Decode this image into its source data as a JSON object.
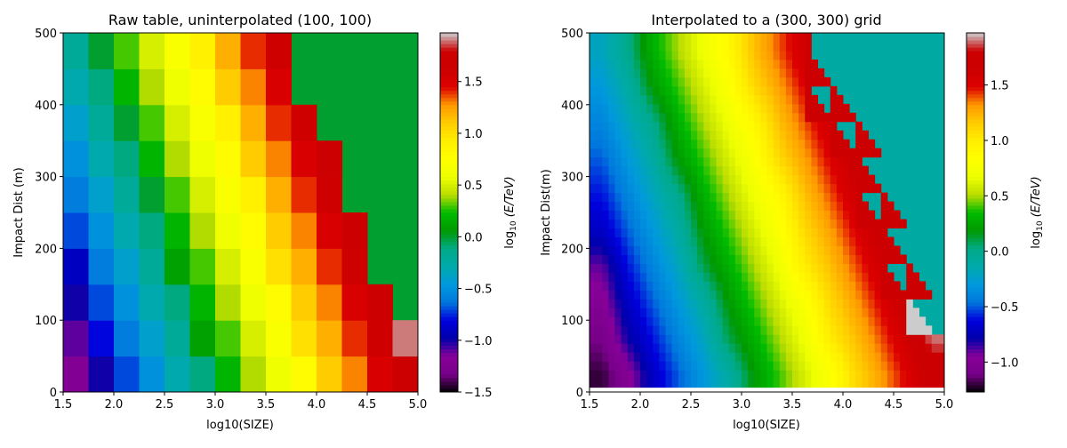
{
  "chart_data": [
    {
      "type": "heatmap",
      "title": "Raw table, uninterpolated (100, 100)",
      "xlabel": "log10(SIZE)",
      "ylabel": "Impact Dist (m)",
      "xlim": [
        1.5,
        5.0
      ],
      "ylim": [
        0,
        500
      ],
      "xticks": [
        "1.5",
        "2.0",
        "2.5",
        "3.0",
        "3.5",
        "4.0",
        "4.5",
        "5.0"
      ],
      "yticks": [
        "0",
        "100",
        "200",
        "300",
        "400",
        "500"
      ],
      "colormap": "nipy_spectral",
      "interpolation": "none",
      "colorbar": {
        "label_main": "log",
        "label_sub": "10",
        "label_rest": " (E/TeV)",
        "range": [
          -1.5,
          1.97
        ],
        "ticks": [
          "−1.5",
          "−1.0",
          "−0.5",
          "0.0",
          "0.5",
          "1.0",
          "1.5"
        ]
      },
      "fill_value": 0.0
    },
    {
      "type": "heatmap",
      "title": "Interpolated to a (300, 300) grid",
      "xlabel": "log10(SIZE)",
      "ylabel": "Impact Dist(m)",
      "xlim": [
        1.5,
        5.0
      ],
      "ylim": [
        0,
        500
      ],
      "xticks": [
        "1.5",
        "2.0",
        "2.5",
        "3.0",
        "3.5",
        "4.0",
        "4.5",
        "5.0"
      ],
      "yticks": [
        "0",
        "100",
        "200",
        "300",
        "400",
        "500"
      ],
      "colormap": "nipy_spectral",
      "interpolation": "bilinear",
      "colorbar": {
        "label_main": "log",
        "label_sub": "10",
        "label_rest": " (E/TeV)",
        "range": [
          -1.27,
          1.97
        ],
        "ticks": [
          "−1.0",
          "−0.5",
          "0.0",
          "0.5",
          "1.0",
          "1.5"
        ]
      },
      "fill_value": -0.1
    }
  ],
  "grid": {
    "x_centers": [
      1.625,
      1.875,
      2.125,
      2.375,
      2.625,
      2.875,
      3.125,
      3.375,
      3.625,
      3.875,
      4.125,
      4.375,
      4.625,
      4.875
    ],
    "y_centers": [
      25,
      75,
      125,
      175,
      225,
      275,
      325,
      375,
      425,
      475
    ],
    "values": [
      [
        -1.2,
        -1.0,
        -0.7,
        -0.5,
        -0.3,
        -0.1,
        0.2,
        0.4,
        0.6,
        0.8,
        1.1,
        1.3,
        1.5,
        1.7
      ],
      [
        -1.1,
        -0.8,
        -0.6,
        -0.4,
        -0.2,
        0.1,
        0.3,
        0.5,
        0.7,
        1.0,
        1.2,
        1.4,
        1.6,
        1.9
      ],
      [
        -1.0,
        -0.7,
        -0.5,
        -0.3,
        -0.1,
        0.2,
        0.4,
        0.6,
        0.8,
        1.1,
        1.3,
        1.5,
        1.7,
        null
      ],
      [
        -0.9,
        -0.6,
        -0.4,
        -0.2,
        0.1,
        0.3,
        0.5,
        0.7,
        1.0,
        1.2,
        1.4,
        1.6,
        null,
        null
      ],
      [
        -0.7,
        -0.5,
        -0.3,
        -0.1,
        0.2,
        0.4,
        0.6,
        0.8,
        1.1,
        1.3,
        1.5,
        1.7,
        null,
        null
      ],
      [
        -0.6,
        -0.4,
        -0.2,
        0.0,
        0.3,
        0.5,
        0.7,
        0.9,
        1.2,
        1.4,
        1.6,
        null,
        null,
        null
      ],
      [
        -0.5,
        -0.3,
        -0.1,
        0.2,
        0.4,
        0.6,
        0.8,
        1.1,
        1.3,
        1.5,
        1.7,
        null,
        null,
        null
      ],
      [
        -0.4,
        -0.2,
        0.0,
        0.3,
        0.5,
        0.7,
        0.9,
        1.2,
        1.4,
        1.6,
        null,
        null,
        null,
        null
      ],
      [
        -0.3,
        -0.1,
        0.2,
        0.4,
        0.6,
        0.8,
        1.1,
        1.3,
        1.5,
        null,
        null,
        null,
        null,
        null
      ],
      [
        -0.2,
        0.0,
        0.3,
        0.5,
        0.7,
        0.9,
        1.2,
        1.4,
        1.6,
        null,
        null,
        null,
        null,
        null
      ]
    ]
  }
}
